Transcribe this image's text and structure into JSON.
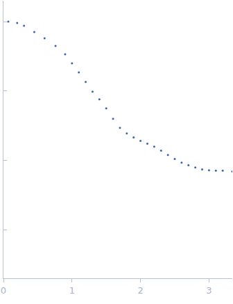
{
  "chart_data": {
    "type": "scatter",
    "marker": "circle",
    "color": "#3a64b0",
    "log": "y",
    "grid": false,
    "tick_labels": "x",
    "x": [
      0.07,
      0.2,
      0.3,
      0.45,
      0.6,
      0.76,
      0.9,
      1.0,
      1.1,
      1.2,
      1.3,
      1.4,
      1.5,
      1.6,
      1.7,
      1.8,
      1.9,
      2.0,
      2.1,
      2.2,
      2.3,
      2.4,
      2.5,
      2.6,
      2.7,
      2.8,
      2.9,
      3.0,
      3.1,
      3.2,
      3.34
    ],
    "values": [
      1.0,
      0.955,
      0.871,
      0.708,
      0.575,
      0.447,
      0.339,
      0.251,
      0.186,
      0.135,
      0.0977,
      0.0759,
      0.0562,
      0.0398,
      0.0295,
      0.0245,
      0.0214,
      0.0191,
      0.0174,
      0.0158,
      0.0138,
      0.012,
      0.0105,
      0.0093,
      0.0085,
      0.0079,
      0.0074,
      0.0072,
      0.0071,
      0.0071,
      0.0069
    ],
    "xlim": [
      0,
      3.34
    ],
    "xticks": [
      0,
      1,
      2,
      3
    ],
    "ylim": [
      0.0002,
      2
    ],
    "yticks": [
      0.001,
      0.01,
      0.1,
      1
    ]
  }
}
